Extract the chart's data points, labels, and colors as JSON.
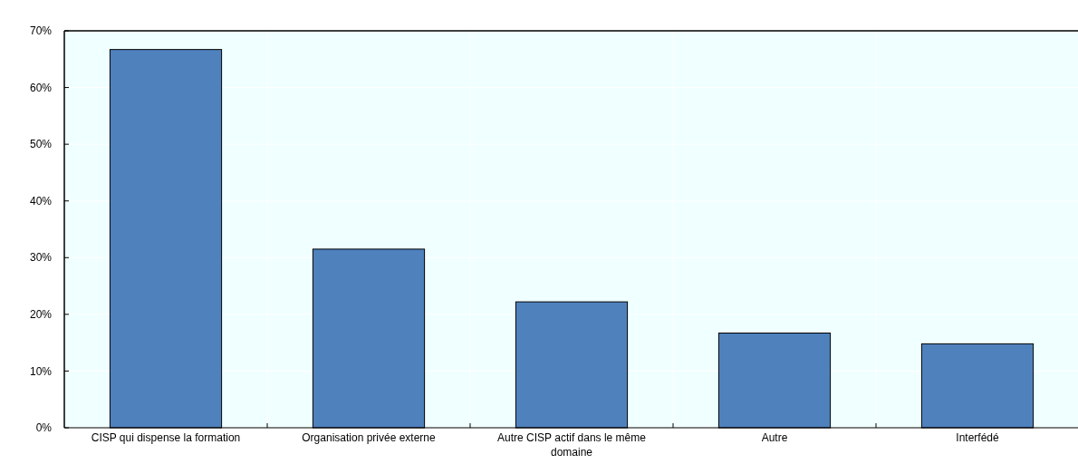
{
  "chart_data": {
    "type": "bar",
    "categories": [
      "CISP qui dispense la formation",
      "Organisation privée externe",
      "Autre CISP actif dans le même domaine",
      "Autre",
      "Interfédé"
    ],
    "values": [
      66.7,
      31.5,
      22.2,
      16.7,
      14.8
    ],
    "color": "#4f81bd",
    "ylim": [
      0,
      70
    ],
    "yticks": [
      {
        "value": 0,
        "label": "0%"
      },
      {
        "value": 10,
        "label": "10%"
      },
      {
        "value": 20,
        "label": "20%"
      },
      {
        "value": 30,
        "label": "30%"
      },
      {
        "value": 40,
        "label": "40%"
      },
      {
        "value": 50,
        "label": "50%"
      },
      {
        "value": 60,
        "label": "60%"
      },
      {
        "value": 70,
        "label": "70%"
      }
    ],
    "grid": true
  }
}
